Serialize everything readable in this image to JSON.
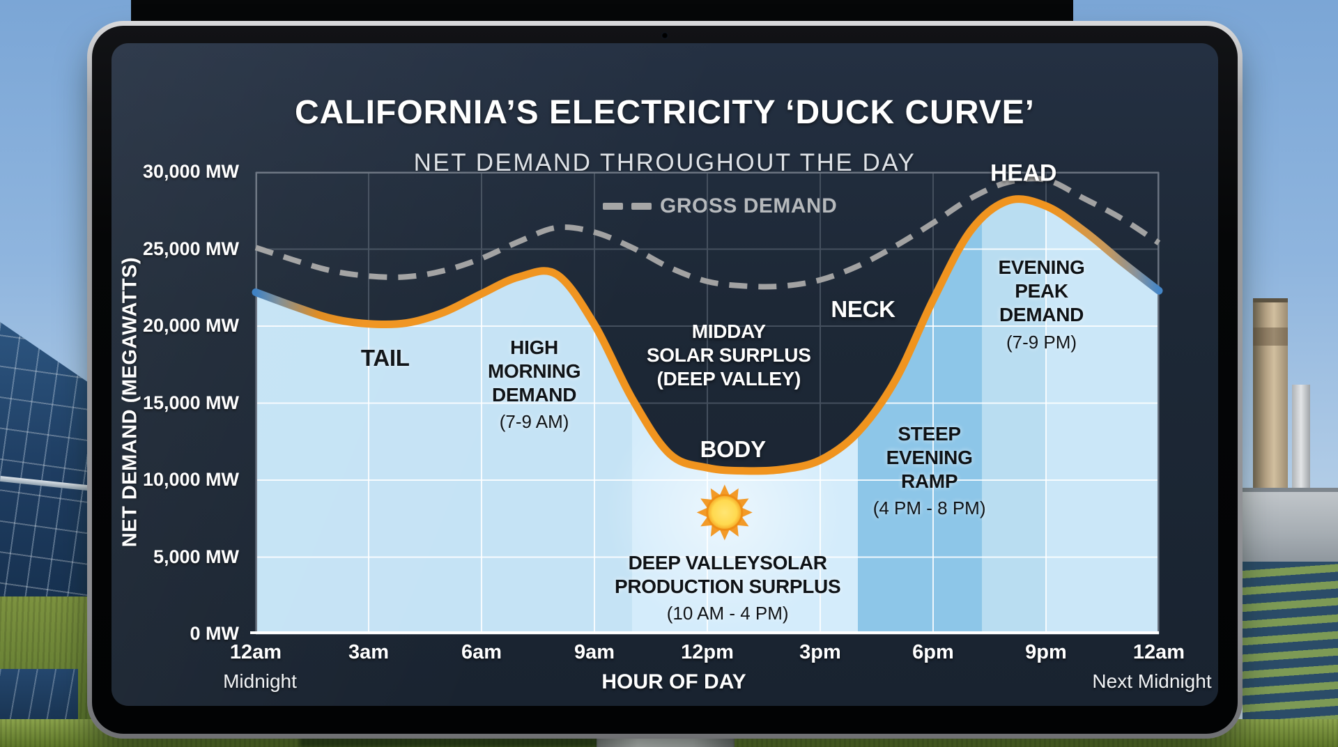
{
  "screen": {
    "title": "CALIFORNIA’S ELECTRICITY ‘DUCK CURVE’",
    "subtitle": "NET DEMAND THROUGHOUT THE DAY"
  },
  "colors": {
    "screen_bg": "#1d2836",
    "fill_base": "#c5e3f5",
    "grid_dark": "#45505e",
    "grid_light": "rgba(255,255,255,0.85)",
    "axis_line": "#6a7380",
    "bottom_axis": "#ffffff",
    "gross_line": "#a2a2a2",
    "net_orange": "#f0941f",
    "net_blue": "#3a7ec2",
    "sun_ray": "#f29a28",
    "sun_core": "#ffd94f"
  },
  "chart_data": {
    "type": "line",
    "title": "CALIFORNIA’S ELECTRICITY ‘DUCK CURVE’",
    "subtitle": "NET DEMAND THROUGHOUT THE DAY",
    "xlabel": "HOUR OF DAY",
    "ylabel": "NET DEMAND (MEGAWATTS)",
    "xlim": [
      0,
      24
    ],
    "ylim": [
      0,
      30000
    ],
    "grid": true,
    "legend": {
      "label": "GROSS DEMAND",
      "position": "top-center"
    },
    "x_hours": [
      0,
      1,
      2,
      3,
      4,
      5,
      6,
      7,
      8,
      9,
      10,
      11,
      12,
      13,
      14,
      15,
      16,
      17,
      18,
      19,
      20,
      21,
      22,
      23,
      24
    ],
    "series": [
      {
        "id": "gross",
        "name": "GROSS DEMAND",
        "style": "dashed",
        "color": "#a2a2a2",
        "values": [
          25100,
          24300,
          23600,
          23250,
          23200,
          23600,
          24400,
          25500,
          26400,
          26100,
          25100,
          23800,
          22900,
          22600,
          22600,
          23000,
          23900,
          25200,
          26700,
          28300,
          29350,
          29500,
          28300,
          27000,
          25400
        ]
      },
      {
        "id": "net",
        "name": "NET DEMAND",
        "style": "solid",
        "color": "#f0941f",
        "gradient": [
          [
            "0%",
            "#3a7ec2"
          ],
          [
            "2.5%",
            "#7d8d96"
          ],
          [
            "7%",
            "#e08a1d"
          ],
          [
            "12%",
            "#f0941f"
          ],
          [
            "88%",
            "#f0941f"
          ],
          [
            "94%",
            "#c9995a"
          ],
          [
            "97.5%",
            "#87929b"
          ],
          [
            "100%",
            "#4486c8"
          ]
        ],
        "values": [
          22200,
          21300,
          20500,
          20150,
          20200,
          20900,
          22100,
          23200,
          23350,
          20100,
          15300,
          11700,
          10800,
          10600,
          10700,
          11300,
          13100,
          16500,
          21700,
          26200,
          28150,
          27800,
          26200,
          24200,
          22300
        ]
      }
    ],
    "yticks": {
      "values": [
        0,
        5000,
        10000,
        15000,
        20000,
        25000,
        30000
      ],
      "labels": [
        "0 MW",
        "5,000 MW",
        "10,000 MW",
        "15,000 MW",
        "20,000 MW",
        "25,000 MW",
        "30,000 MW"
      ]
    },
    "xticks": {
      "hours": [
        0,
        3,
        6,
        9,
        12,
        15,
        18,
        21,
        24
      ],
      "labels": [
        "12am",
        "3am",
        "6am",
        "9am",
        "12pm",
        "3pm",
        "6pm",
        "9pm",
        "12am"
      ],
      "sublabel_first": "Midnight",
      "sublabel_last": "Next Midnight"
    },
    "bands": [
      {
        "id": "solar-surplus-region",
        "from": 10,
        "to": 16,
        "color": "#d4ecfb"
      },
      {
        "id": "steep-ramp-region",
        "from": 16,
        "to": 19.3,
        "color": "#8dc6e8"
      },
      {
        "id": "evening-peak-region",
        "from": 19.3,
        "to": 21,
        "color": "#b9ddf1"
      },
      {
        "id": "late-evening-region",
        "from": 21,
        "to": 24,
        "color": "#cbe7f8"
      }
    ],
    "sun_icon": {
      "h": 12.46,
      "mw": 7900
    },
    "annotations": [
      {
        "id": "tail",
        "lines": [
          "TAIL"
        ],
        "sub": null,
        "tone": "dark",
        "h": 3.44,
        "mw": 17900,
        "size": 33
      },
      {
        "id": "high-morning-demand",
        "lines": [
          "HIGH",
          "MORNING",
          "DEMAND"
        ],
        "sub": "(7-9 AM)",
        "tone": "dark",
        "h": 7.4,
        "mw": 16200,
        "size": 28
      },
      {
        "id": "midday-solar-surplus",
        "lines": [
          "MIDDAY",
          "SOLAR SURPLUS",
          "(DEEP VALLEY)"
        ],
        "sub": null,
        "tone": "light",
        "h": 12.57,
        "mw": 18100,
        "size": 28
      },
      {
        "id": "body",
        "lines": [
          "BODY"
        ],
        "sub": null,
        "tone": "light",
        "h": 12.68,
        "mw": 12000,
        "size": 33
      },
      {
        "id": "neck",
        "lines": [
          "NECK"
        ],
        "sub": null,
        "tone": "light",
        "h": 16.14,
        "mw": 21100,
        "size": 33
      },
      {
        "id": "head",
        "lines": [
          "HEAD"
        ],
        "sub": null,
        "tone": "light",
        "h": 20.4,
        "mw": 29900,
        "size": 34
      },
      {
        "id": "evening-peak-demand",
        "lines": [
          "EVENING",
          "PEAK",
          "DEMAND"
        ],
        "sub": "(7-9 PM)",
        "tone": "dark",
        "h": 20.88,
        "mw": 21400,
        "size": 28
      },
      {
        "id": "steep-evening-ramp",
        "lines": [
          "STEEP",
          "EVENING",
          "RAMP"
        ],
        "sub": "(4 PM - 8 PM)",
        "tone": "dark",
        "h": 17.9,
        "mw": 10600,
        "size": 28
      },
      {
        "id": "deep-valley-solar",
        "lines": [
          "DEEP VALLEYSOLAR",
          "PRODUCTION SURPLUS"
        ],
        "sub": "(10 AM - 4 PM)",
        "tone": "dark",
        "h": 12.54,
        "mw": 3000,
        "size": 28
      }
    ]
  }
}
